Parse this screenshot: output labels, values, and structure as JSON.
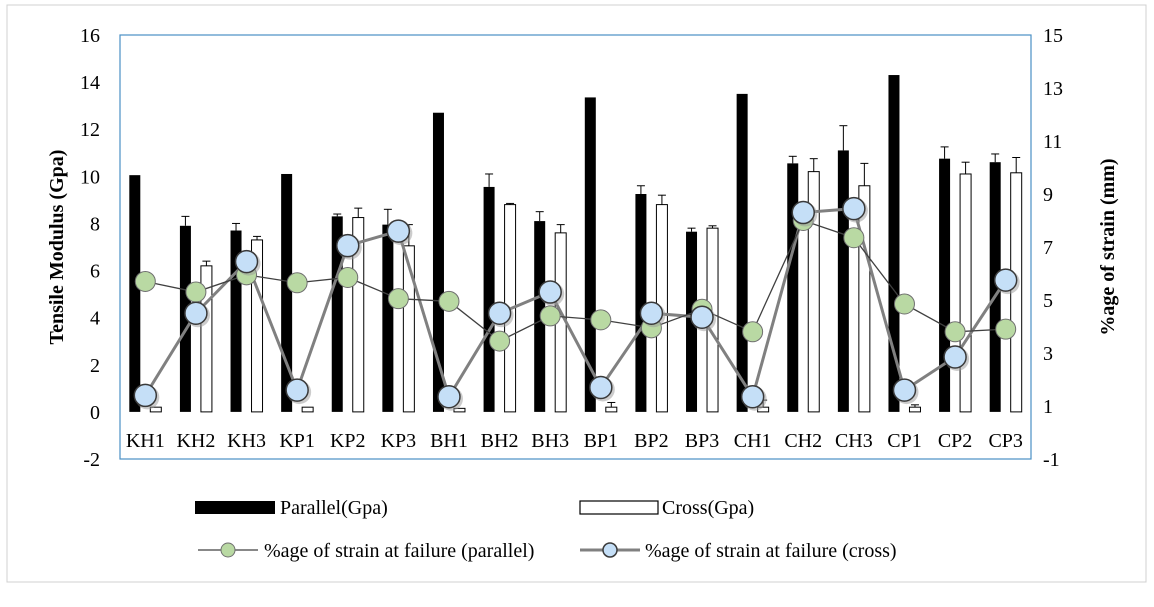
{
  "chart_data": {
    "type": "bar",
    "categories": [
      "KH1",
      "KH2",
      "KH3",
      "KP1",
      "KP2",
      "KP3",
      "BH1",
      "BH2",
      "BH3",
      "BP1",
      "BP2",
      "BP3",
      "CH1",
      "CH2",
      "CH3",
      "CP1",
      "CP2",
      "CP3"
    ],
    "series": [
      {
        "name": "Parallel(Gpa)",
        "kind": "bar",
        "axis": "left",
        "color": "#000000",
        "values": [
          10.05,
          7.9,
          7.7,
          10.1,
          8.3,
          7.95,
          12.7,
          9.55,
          8.1,
          13.35,
          9.25,
          7.65,
          13.5,
          10.55,
          11.1,
          14.3,
          10.75,
          10.6
        ],
        "errors": [
          0,
          0.4,
          0.3,
          0,
          0.1,
          0.65,
          0,
          0.55,
          0.4,
          0,
          0.35,
          0.15,
          0,
          0.3,
          1.05,
          0,
          0.5,
          0.35
        ]
      },
      {
        "name": "Cross(Gpa)",
        "kind": "bar",
        "axis": "left",
        "color": "#ffffff",
        "values": [
          0.2,
          6.2,
          7.3,
          0.2,
          8.25,
          7.05,
          0.15,
          8.8,
          7.6,
          0.2,
          8.8,
          7.8,
          0.2,
          10.2,
          9.6,
          0.2,
          10.1,
          10.15
        ],
        "errors": [
          0,
          0.2,
          0.15,
          0,
          0.4,
          0.9,
          0,
          0.05,
          0.35,
          0.2,
          0.4,
          0.1,
          0.3,
          0.55,
          0.95,
          0.1,
          0.5,
          0.65
        ]
      },
      {
        "name": "%age of strain at failure (parallel)",
        "kind": "line",
        "axis": "right",
        "color": "#b9d9a3",
        "values": [
          5.7,
          5.3,
          5.95,
          5.65,
          5.85,
          5.05,
          4.95,
          3.45,
          4.4,
          4.25,
          3.95,
          4.65,
          3.8,
          8.0,
          7.35,
          4.85,
          3.8,
          3.9
        ]
      },
      {
        "name": "%age of strain at failure (cross)",
        "kind": "line",
        "axis": "right",
        "color": "#c5dff7",
        "values": [
          1.4,
          4.5,
          6.45,
          1.6,
          7.05,
          7.6,
          1.35,
          4.5,
          5.3,
          1.7,
          4.5,
          4.35,
          1.35,
          8.3,
          8.45,
          1.6,
          2.85,
          5.75
        ]
      }
    ],
    "ylabel": "Tensile Modulus (Gpa)",
    "y2label": "%age of strain (mm)",
    "ylim": [
      -2,
      16
    ],
    "y2lim": [
      -1,
      15
    ],
    "yticks": [
      "16",
      "14",
      "12",
      "10",
      "8",
      "6",
      "4",
      "2",
      "0",
      "-2"
    ],
    "y2ticks": [
      "15",
      "13",
      "11",
      "9",
      "7",
      "5",
      "3",
      "1",
      "-1"
    ],
    "legend_position": "bottom",
    "grid": false
  }
}
